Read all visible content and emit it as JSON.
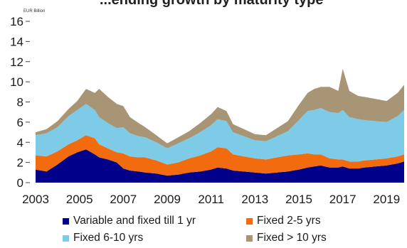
{
  "chart_data": {
    "type": "area",
    "stacked": true,
    "title_fragment": "...ending growth by maturity type",
    "unit_label": "EUR Billion",
    "x_ticks": [
      "2003",
      "2005",
      "2007",
      "2009",
      "2011",
      "2013",
      "2015",
      "2017",
      "2019"
    ],
    "y_ticks": [
      "0",
      "2",
      "4",
      "6",
      "8",
      "10",
      "12",
      "14",
      "16"
    ],
    "xlim": [
      2003,
      2019.8
    ],
    "ylim": [
      0,
      16
    ],
    "x": [
      2003.0,
      2003.5,
      2004.0,
      2004.5,
      2004.9,
      2005.3,
      2005.7,
      2005.9,
      2006.3,
      2006.7,
      2007.0,
      2007.3,
      2007.7,
      2008.0,
      2008.5,
      2009.0,
      2009.5,
      2010.0,
      2010.5,
      2011.0,
      2011.3,
      2011.7,
      2012.0,
      2012.5,
      2013.0,
      2013.5,
      2014.0,
      2014.5,
      2015.0,
      2015.4,
      2015.7,
      2016.0,
      2016.4,
      2016.8,
      2017.0,
      2017.3,
      2017.7,
      2018.0,
      2018.5,
      2019.0,
      2019.5,
      2019.8
    ],
    "series": [
      {
        "name": "Variable and fixed till 1 yr",
        "color": "#00008b",
        "values": [
          1.3,
          1.1,
          1.8,
          2.6,
          3.0,
          3.3,
          2.8,
          2.5,
          2.3,
          2.0,
          1.4,
          1.2,
          1.1,
          1.0,
          0.9,
          0.7,
          0.8,
          1.0,
          1.1,
          1.3,
          1.5,
          1.4,
          1.2,
          1.1,
          1.0,
          0.9,
          1.0,
          1.1,
          1.3,
          1.5,
          1.6,
          1.7,
          1.5,
          1.5,
          1.6,
          1.4,
          1.4,
          1.5,
          1.6,
          1.7,
          1.9,
          2.1
        ]
      },
      {
        "name": "Fixed 2-5 yrs",
        "color": "#f26b0f",
        "values": [
          1.4,
          1.5,
          1.3,
          1.2,
          1.2,
          1.4,
          1.6,
          1.3,
          1.1,
          1.0,
          1.5,
          1.4,
          1.4,
          1.5,
          1.3,
          1.1,
          1.2,
          1.4,
          1.6,
          1.8,
          2.0,
          2.0,
          1.6,
          1.5,
          1.4,
          1.4,
          1.5,
          1.6,
          1.5,
          1.4,
          1.2,
          1.1,
          0.9,
          0.8,
          0.7,
          0.7,
          0.7,
          0.7,
          0.7,
          0.7,
          0.7,
          0.7
        ]
      },
      {
        "name": "Fixed 6-10 yrs",
        "color": "#7ecbe8",
        "values": [
          2.0,
          2.3,
          2.4,
          2.8,
          3.0,
          3.1,
          2.8,
          2.7,
          2.5,
          2.4,
          2.6,
          2.3,
          2.1,
          2.0,
          1.8,
          1.6,
          1.9,
          2.0,
          2.3,
          2.6,
          2.8,
          2.7,
          2.2,
          2.0,
          1.8,
          1.8,
          2.1,
          2.4,
          3.4,
          4.2,
          4.4,
          4.6,
          4.6,
          4.6,
          4.9,
          4.4,
          4.2,
          4.0,
          3.8,
          3.6,
          4.0,
          4.4
        ]
      },
      {
        "name": "Fixed > 10 yrs",
        "color": "#a89575",
        "values": [
          0.3,
          0.4,
          0.6,
          0.7,
          0.9,
          1.5,
          1.7,
          2.8,
          2.6,
          2.4,
          2.1,
          1.6,
          1.3,
          1.0,
          0.7,
          0.5,
          0.6,
          0.7,
          0.9,
          1.1,
          1.2,
          1.0,
          0.8,
          0.7,
          0.6,
          0.6,
          0.8,
          1.0,
          1.5,
          1.8,
          2.1,
          2.1,
          2.5,
          2.2,
          4.1,
          2.6,
          2.3,
          2.3,
          2.2,
          2.1,
          2.3,
          2.5
        ]
      }
    ]
  }
}
